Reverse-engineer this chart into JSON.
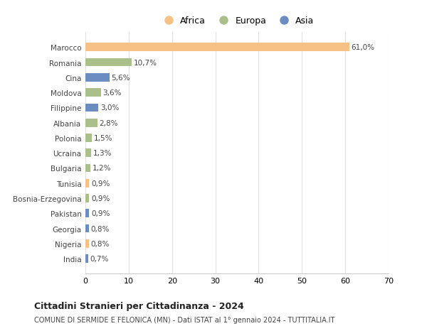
{
  "countries": [
    "Marocco",
    "Romania",
    "Cina",
    "Moldova",
    "Filippine",
    "Albania",
    "Polonia",
    "Ucraina",
    "Bulgaria",
    "Tunisia",
    "Bosnia-Erzegovina",
    "Pakistan",
    "Georgia",
    "Nigeria",
    "India"
  ],
  "values": [
    61.0,
    10.7,
    5.6,
    3.6,
    3.0,
    2.8,
    1.5,
    1.3,
    1.2,
    0.9,
    0.9,
    0.9,
    0.8,
    0.8,
    0.7
  ],
  "labels": [
    "61,0%",
    "10,7%",
    "5,6%",
    "3,6%",
    "3,0%",
    "2,8%",
    "1,5%",
    "1,3%",
    "1,2%",
    "0,9%",
    "0,9%",
    "0,9%",
    "0,8%",
    "0,8%",
    "0,7%"
  ],
  "continents": [
    "Africa",
    "Europa",
    "Asia",
    "Europa",
    "Asia",
    "Europa",
    "Europa",
    "Europa",
    "Europa",
    "Africa",
    "Europa",
    "Asia",
    "Asia",
    "Africa",
    "Asia"
  ],
  "colors": {
    "Africa": "#F5C185",
    "Europa": "#AABF8A",
    "Asia": "#6B8DBF"
  },
  "title": "Cittadini Stranieri per Cittadinanza - 2024",
  "subtitle": "COMUNE DI SERMIDE E FELONICA (MN) - Dati ISTAT al 1° gennaio 2024 - TUTTITALIA.IT",
  "xlim": [
    0,
    70
  ],
  "xticks": [
    0,
    10,
    20,
    30,
    40,
    50,
    60,
    70
  ],
  "background_color": "#ffffff",
  "grid_color": "#e0e0e0"
}
